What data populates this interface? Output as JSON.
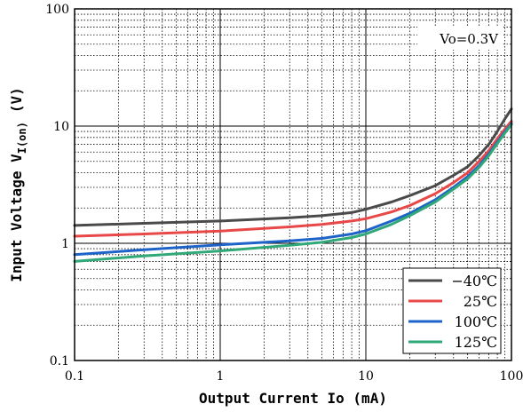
{
  "chart_data": {
    "type": "line",
    "xscale": "log",
    "yscale": "log",
    "xlim": [
      0.1,
      100
    ],
    "ylim": [
      0.1,
      100
    ],
    "grid": true,
    "xlabel": "Output Current Io (mA)",
    "ylabel_main": "Input Voltage V",
    "ylabel_sub": "I(on)",
    "ylabel_unit": "(V)",
    "x_ticks": [
      {
        "value": 0.1,
        "label": "0.1"
      },
      {
        "value": 1,
        "label": "1"
      },
      {
        "value": 10,
        "label": "10"
      },
      {
        "value": 100,
        "label": "100"
      }
    ],
    "y_ticks": [
      {
        "value": 0.1,
        "label": "0.1"
      },
      {
        "value": 1,
        "label": "1"
      },
      {
        "value": 10,
        "label": "10"
      },
      {
        "value": 100,
        "label": "100"
      }
    ],
    "annotation": "Vo=0.3V",
    "legend_position": "bottom-right",
    "series": [
      {
        "name": "−40℃",
        "color": "#4a4a4a",
        "x": [
          0.1,
          0.3,
          1,
          3,
          5,
          8,
          10,
          15,
          20,
          30,
          40,
          50,
          60,
          70,
          80,
          90,
          100
        ],
        "y": [
          1.42,
          1.48,
          1.55,
          1.65,
          1.72,
          1.83,
          1.95,
          2.25,
          2.55,
          3.1,
          3.8,
          4.5,
          5.6,
          7.0,
          9.0,
          11.5,
          14.0
        ]
      },
      {
        "name": "25℃",
        "color": "#e84848",
        "x": [
          0.1,
          0.3,
          1,
          3,
          5,
          8,
          10,
          15,
          20,
          30,
          40,
          50,
          60,
          70,
          80,
          90,
          100
        ],
        "y": [
          1.15,
          1.2,
          1.27,
          1.38,
          1.45,
          1.55,
          1.62,
          1.85,
          2.1,
          2.65,
          3.3,
          4.0,
          5.0,
          6.2,
          7.8,
          9.4,
          11.0
        ]
      },
      {
        "name": "100℃",
        "color": "#1e64c8",
        "x": [
          0.1,
          0.3,
          1,
          3,
          5,
          8,
          10,
          15,
          20,
          30,
          40,
          50,
          60,
          70,
          80,
          90,
          100
        ],
        "y": [
          0.8,
          0.88,
          0.97,
          1.05,
          1.1,
          1.2,
          1.28,
          1.55,
          1.8,
          2.35,
          3.0,
          3.7,
          4.6,
          5.8,
          7.3,
          8.9,
          10.5
        ]
      },
      {
        "name": "125℃",
        "color": "#30a878",
        "x": [
          0.1,
          0.3,
          1,
          3,
          5,
          8,
          10,
          15,
          20,
          30,
          40,
          50,
          60,
          70,
          80,
          90,
          100
        ],
        "y": [
          0.7,
          0.78,
          0.86,
          0.96,
          1.02,
          1.12,
          1.2,
          1.45,
          1.72,
          2.25,
          2.9,
          3.55,
          4.45,
          5.6,
          7.1,
          8.7,
          10.3
        ]
      }
    ]
  }
}
